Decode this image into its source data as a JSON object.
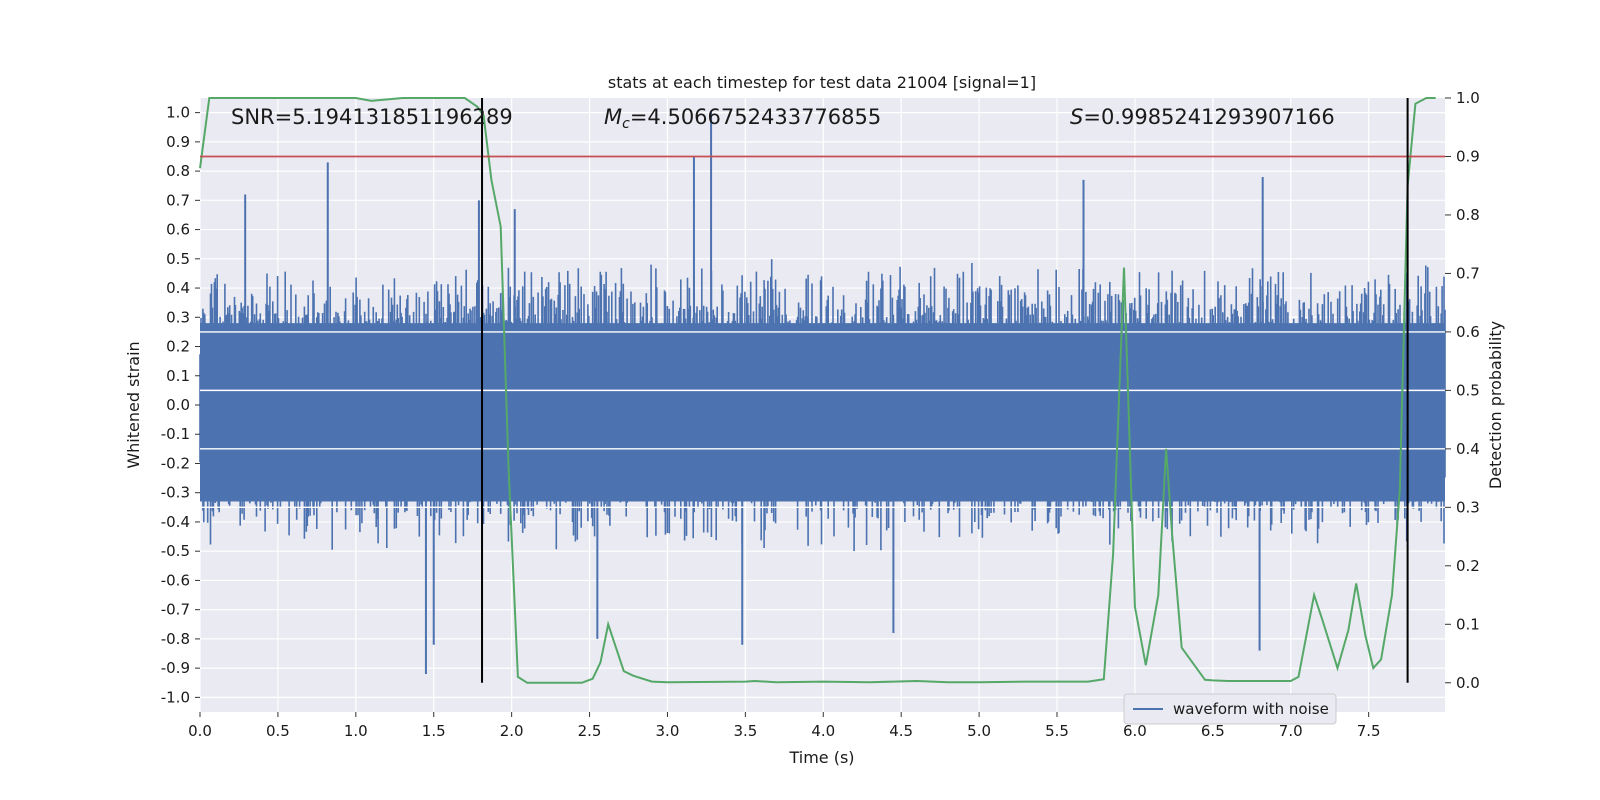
{
  "chart_data": {
    "type": "line",
    "title": "stats at each timestep for test data 21004 [signal=1]",
    "xlabel": "Time (s)",
    "ylabel_left": "Whitened strain",
    "ylabel_right": "Detection probability",
    "xlim": [
      0.0,
      7.99
    ],
    "ylim_left": [
      -1.05,
      1.05
    ],
    "ylim_right": [
      -0.05,
      1.0
    ],
    "x_ticks": [
      0.0,
      0.5,
      1.0,
      1.5,
      2.0,
      2.5,
      3.0,
      3.5,
      4.0,
      4.5,
      5.0,
      5.5,
      6.0,
      6.5,
      7.0,
      7.5
    ],
    "x_tick_labels": [
      "0.0",
      "0.5",
      "1.0",
      "1.5",
      "2.0",
      "2.5",
      "3.0",
      "3.5",
      "4.0",
      "4.5",
      "5.0",
      "5.5",
      "6.0",
      "6.5",
      "7.0",
      "7.5"
    ],
    "y_left_ticks": [
      1.0,
      0.9,
      0.8,
      0.7,
      0.6,
      0.5,
      0.4,
      0.3,
      0.2,
      0.1,
      0.0,
      -0.1,
      -0.2,
      -0.3,
      -0.4,
      -0.5,
      -0.6,
      -0.7,
      -0.8,
      -0.9,
      -1.0
    ],
    "y_left_tick_labels": [
      "1.0",
      "0.9",
      "0.8",
      "0.7",
      "0.6",
      "0.5",
      "0.4",
      "0.3",
      "0.2",
      "0.1",
      "0.0",
      "-0.1",
      "-0.2",
      "-0.3",
      "-0.4",
      "-0.5",
      "-0.6",
      "-0.7",
      "-0.8",
      "-0.9",
      "-1.0"
    ],
    "y_right_ticks": [
      1.0,
      0.9,
      0.8,
      0.7,
      0.6,
      0.5,
      0.4,
      0.3,
      0.2,
      0.1,
      0.0
    ],
    "y_right_tick_labels": [
      "1.0",
      "0.9",
      "0.8",
      "0.7",
      "0.6",
      "0.5",
      "0.4",
      "0.3",
      "0.2",
      "0.1",
      "0.0"
    ],
    "annotations": {
      "snr": "SNR=5.194131851196289",
      "mc_symbol": "M",
      "mc_subscript": "c",
      "mc_value": "=4.5066752433776855",
      "s_symbol": "S",
      "s_value": "=0.9985241293907166"
    },
    "legend": {
      "label": "waveform with noise",
      "placement": "lower-right"
    },
    "threshold_line": {
      "value": 0.9,
      "axis": "right",
      "color": "#c44e52"
    },
    "vertical_markers": [
      1.81,
      7.75
    ],
    "strain_series": {
      "name": "waveform with noise",
      "color": "#4c72b0",
      "typical_envelope": 0.42,
      "tallest_spikes": [
        {
          "x": 0.29,
          "y": 0.72
        },
        {
          "x": 0.82,
          "y": 0.83
        },
        {
          "x": 1.45,
          "y": -0.92
        },
        {
          "x": 1.5,
          "y": -0.82
        },
        {
          "x": 1.79,
          "y": 0.7
        },
        {
          "x": 2.02,
          "y": 0.67
        },
        {
          "x": 2.55,
          "y": -0.8
        },
        {
          "x": 3.17,
          "y": 0.85
        },
        {
          "x": 3.28,
          "y": 1.0
        },
        {
          "x": 3.48,
          "y": -0.82
        },
        {
          "x": 4.45,
          "y": -0.78
        },
        {
          "x": 5.67,
          "y": 0.77
        },
        {
          "x": 6.82,
          "y": 0.78
        },
        {
          "x": 6.8,
          "y": -0.84
        }
      ]
    },
    "probability_series": {
      "color": "#55a868",
      "x": [
        0.0,
        0.06,
        0.12,
        0.5,
        0.9,
        1.0,
        1.1,
        1.3,
        1.6,
        1.7,
        1.78,
        1.82,
        1.87,
        1.93,
        1.98,
        2.04,
        2.1,
        2.3,
        2.45,
        2.52,
        2.57,
        2.62,
        2.67,
        2.72,
        2.78,
        2.9,
        3.0,
        3.5,
        3.56,
        3.7,
        4.0,
        4.3,
        4.6,
        4.8,
        5.0,
        5.3,
        5.7,
        5.8,
        5.86,
        5.93,
        6.0,
        6.07,
        6.15,
        6.2,
        6.24,
        6.3,
        6.45,
        6.5,
        6.6,
        6.8,
        7.0,
        7.05,
        7.15,
        7.2,
        7.3,
        7.37,
        7.42,
        7.48,
        7.53,
        7.58,
        7.65,
        7.7,
        7.75,
        7.8,
        7.87,
        7.93
      ],
      "y": [
        0.88,
        1.0,
        1.0,
        1.0,
        1.0,
        1.0,
        0.995,
        1.0,
        1.0,
        1.0,
        0.985,
        0.97,
        0.86,
        0.78,
        0.37,
        0.01,
        0.0,
        0.0,
        0.0,
        0.007,
        0.035,
        0.1,
        0.06,
        0.02,
        0.012,
        0.002,
        0.001,
        0.002,
        0.003,
        0.001,
        0.002,
        0.001,
        0.003,
        0.001,
        0.001,
        0.002,
        0.002,
        0.006,
        0.22,
        0.71,
        0.13,
        0.03,
        0.15,
        0.4,
        0.25,
        0.06,
        0.005,
        0.004,
        0.003,
        0.003,
        0.003,
        0.01,
        0.15,
        0.11,
        0.025,
        0.09,
        0.17,
        0.08,
        0.025,
        0.04,
        0.15,
        0.33,
        0.85,
        0.99,
        1.0,
        1.0
      ]
    }
  }
}
